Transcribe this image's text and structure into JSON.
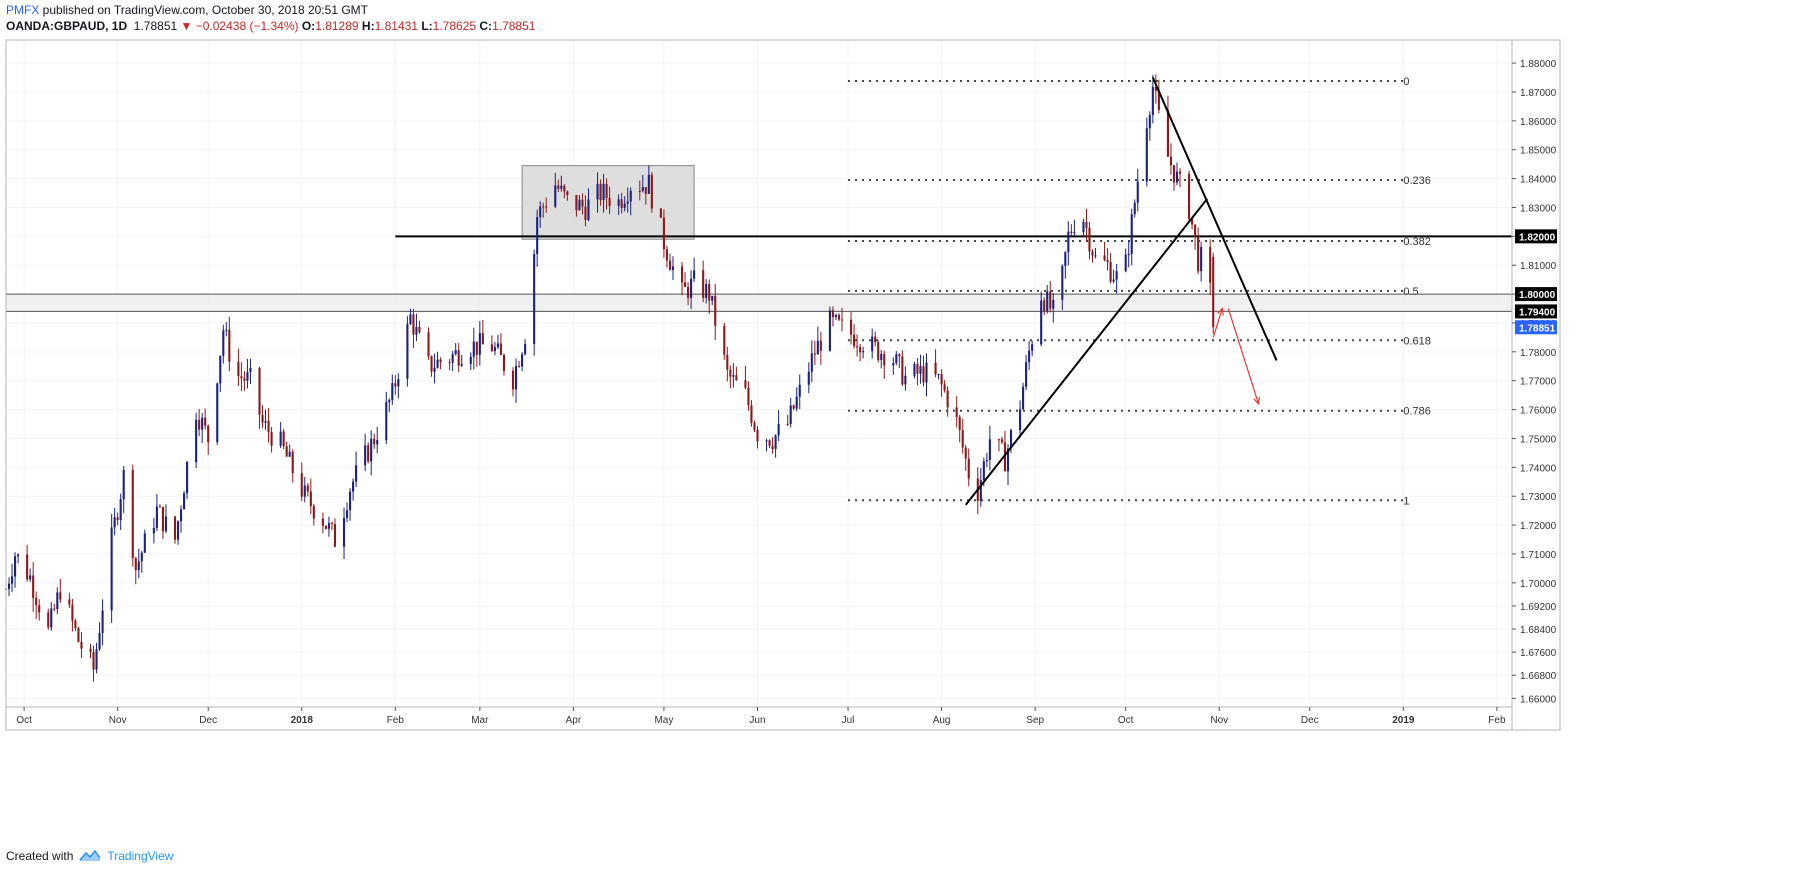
{
  "header": {
    "publisher": "PMFX",
    "published_text": " published on TradingView.com, October 30, 2018 20:51 GMT",
    "symbol": "OANDA:GBPAUD, 1D",
    "last": "1.78851",
    "change": "▼ −0.02438 (−1.34%)",
    "open_label": "O:",
    "open": "1.81289",
    "high_label": "H:",
    "high": "1.81431",
    "low_label": "L:",
    "low": "1.78625",
    "close_label": "C:",
    "close": "1.78851"
  },
  "footer": {
    "created_with": "Created with",
    "brand": "TradingView"
  },
  "colors": {
    "up": "#1a237e",
    "down": "#8b1a1a",
    "current_price_bg": "#2962ff",
    "arrow": "#e53935",
    "zone_fill": "#d8d8d8"
  },
  "chart_data": {
    "type": "candlestick",
    "symbol": "OANDA:GBPAUD",
    "timeframe": "1D",
    "ylim": [
      1.657,
      1.888
    ],
    "y_ticks": [
      1.66,
      1.668,
      1.676,
      1.684,
      1.692,
      1.7,
      1.71,
      1.72,
      1.73,
      1.74,
      1.75,
      1.76,
      1.77,
      1.78,
      1.79,
      1.8,
      1.81,
      1.82,
      1.83,
      1.84,
      1.85,
      1.86,
      1.87,
      1.88
    ],
    "y_tick_labels": [
      "1.66000",
      "1.66800",
      "1.67600",
      "1.68400",
      "1.69200",
      "1.70000",
      "1.71000",
      "1.72000",
      "1.73000",
      "1.74000",
      "1.75000",
      "1.76000",
      "1.77000",
      "1.78000",
      "1.79000",
      "1.80000",
      "1.81000",
      "1.82000",
      "1.83000",
      "1.84000",
      "1.85000",
      "1.86000",
      "1.87000",
      "1.88000"
    ],
    "x_range": [
      "2017-09-25",
      "2019-02-06"
    ],
    "x_ticks": [
      {
        "label": "Oct",
        "date": "2017-10-01",
        "bold": false
      },
      {
        "label": "Nov",
        "date": "2017-11-01",
        "bold": false
      },
      {
        "label": "Dec",
        "date": "2017-12-01",
        "bold": false
      },
      {
        "label": "2018",
        "date": "2018-01-01",
        "bold": true
      },
      {
        "label": "Feb",
        "date": "2018-02-01",
        "bold": false
      },
      {
        "label": "Mar",
        "date": "2018-03-01",
        "bold": false
      },
      {
        "label": "Apr",
        "date": "2018-04-01",
        "bold": false
      },
      {
        "label": "May",
        "date": "2018-05-01",
        "bold": false
      },
      {
        "label": "Jun",
        "date": "2018-06-01",
        "bold": false
      },
      {
        "label": "Jul",
        "date": "2018-07-01",
        "bold": false
      },
      {
        "label": "Aug",
        "date": "2018-08-01",
        "bold": false
      },
      {
        "label": "Sep",
        "date": "2018-09-01",
        "bold": false
      },
      {
        "label": "Oct",
        "date": "2018-10-01",
        "bold": false
      },
      {
        "label": "Nov",
        "date": "2018-11-01",
        "bold": false
      },
      {
        "label": "Dec",
        "date": "2018-12-01",
        "bold": false
      },
      {
        "label": "2019",
        "date": "2019-01-01",
        "bold": true
      },
      {
        "label": "Feb",
        "date": "2019-02-01",
        "bold": false
      }
    ],
    "close_path": [
      {
        "date": "2017-09-25",
        "close": 1.698
      },
      {
        "date": "2017-09-28",
        "close": 1.71
      },
      {
        "date": "2017-10-03",
        "close": 1.702
      },
      {
        "date": "2017-10-09",
        "close": 1.683
      },
      {
        "date": "2017-10-13",
        "close": 1.698
      },
      {
        "date": "2017-10-19",
        "close": 1.68
      },
      {
        "date": "2017-10-24",
        "close": 1.67
      },
      {
        "date": "2017-10-30",
        "close": 1.715
      },
      {
        "date": "2017-11-03",
        "close": 1.737
      },
      {
        "date": "2017-11-07",
        "close": 1.705
      },
      {
        "date": "2017-11-14",
        "close": 1.725
      },
      {
        "date": "2017-11-20",
        "close": 1.715
      },
      {
        "date": "2017-11-27",
        "close": 1.76
      },
      {
        "date": "2017-12-01",
        "close": 1.75
      },
      {
        "date": "2017-12-06",
        "close": 1.788
      },
      {
        "date": "2017-12-10",
        "close": 1.772
      },
      {
        "date": "2017-12-15",
        "close": 1.77
      },
      {
        "date": "2017-12-19",
        "close": 1.755
      },
      {
        "date": "2017-12-25",
        "close": 1.748
      },
      {
        "date": "2018-01-02",
        "close": 1.73
      },
      {
        "date": "2018-01-08",
        "close": 1.722
      },
      {
        "date": "2018-01-12",
        "close": 1.715
      },
      {
        "date": "2018-01-17",
        "close": 1.733
      },
      {
        "date": "2018-01-25",
        "close": 1.75
      },
      {
        "date": "2018-01-31",
        "close": 1.765
      },
      {
        "date": "2018-02-06",
        "close": 1.792
      },
      {
        "date": "2018-02-12",
        "close": 1.775
      },
      {
        "date": "2018-02-19",
        "close": 1.778
      },
      {
        "date": "2018-02-26",
        "close": 1.782
      },
      {
        "date": "2018-03-05",
        "close": 1.782
      },
      {
        "date": "2018-03-12",
        "close": 1.771
      },
      {
        "date": "2018-03-17",
        "close": 1.79
      },
      {
        "date": "2018-03-20",
        "close": 1.827
      },
      {
        "date": "2018-03-26",
        "close": 1.838
      },
      {
        "date": "2018-03-30",
        "close": 1.832
      },
      {
        "date": "2018-04-05",
        "close": 1.83
      },
      {
        "date": "2018-04-10",
        "close": 1.835
      },
      {
        "date": "2018-04-16",
        "close": 1.832
      },
      {
        "date": "2018-04-20",
        "close": 1.838
      },
      {
        "date": "2018-04-26",
        "close": 1.838
      },
      {
        "date": "2018-05-01",
        "close": 1.818
      },
      {
        "date": "2018-05-07",
        "close": 1.8
      },
      {
        "date": "2018-05-11",
        "close": 1.804
      },
      {
        "date": "2018-05-16",
        "close": 1.8
      },
      {
        "date": "2018-05-22",
        "close": 1.772
      },
      {
        "date": "2018-05-28",
        "close": 1.765
      },
      {
        "date": "2018-06-01",
        "close": 1.752
      },
      {
        "date": "2018-06-06",
        "close": 1.75
      },
      {
        "date": "2018-06-11",
        "close": 1.755
      },
      {
        "date": "2018-06-15",
        "close": 1.766
      },
      {
        "date": "2018-06-20",
        "close": 1.78
      },
      {
        "date": "2018-06-25",
        "close": 1.79
      },
      {
        "date": "2018-06-29",
        "close": 1.788
      },
      {
        "date": "2018-07-04",
        "close": 1.785
      },
      {
        "date": "2018-07-10",
        "close": 1.781
      },
      {
        "date": "2018-07-15",
        "close": 1.779
      },
      {
        "date": "2018-07-20",
        "close": 1.771
      },
      {
        "date": "2018-07-26",
        "close": 1.773
      },
      {
        "date": "2018-07-31",
        "close": 1.77
      },
      {
        "date": "2018-08-05",
        "close": 1.76
      },
      {
        "date": "2018-08-10",
        "close": 1.738
      },
      {
        "date": "2018-08-13",
        "close": 1.732
      },
      {
        "date": "2018-08-17",
        "close": 1.75
      },
      {
        "date": "2018-08-22",
        "close": 1.743
      },
      {
        "date": "2018-08-27",
        "close": 1.762
      },
      {
        "date": "2018-08-30",
        "close": 1.78
      },
      {
        "date": "2018-09-03",
        "close": 1.8
      },
      {
        "date": "2018-09-08",
        "close": 1.792
      },
      {
        "date": "2018-09-12",
        "close": 1.82
      },
      {
        "date": "2018-09-16",
        "close": 1.83
      },
      {
        "date": "2018-09-21",
        "close": 1.812
      },
      {
        "date": "2018-09-25",
        "close": 1.81
      },
      {
        "date": "2018-09-30",
        "close": 1.803
      },
      {
        "date": "2018-10-04",
        "close": 1.832
      },
      {
        "date": "2018-10-07",
        "close": 1.855
      },
      {
        "date": "2018-10-10",
        "close": 1.872
      },
      {
        "date": "2018-10-14",
        "close": 1.85
      },
      {
        "date": "2018-10-18",
        "close": 1.84
      },
      {
        "date": "2018-10-22",
        "close": 1.83
      },
      {
        "date": "2018-10-25",
        "close": 1.812
      },
      {
        "date": "2018-10-28",
        "close": 1.812
      },
      {
        "date": "2018-10-30",
        "close": 1.78851
      }
    ],
    "candle_width_days": 0.7,
    "last_price": 1.78851,
    "last_price_label": "1.78851",
    "horizontal_levels": [
      {
        "price": 1.82,
        "label": "1.82000",
        "from": "2018-02-01",
        "to": "end"
      },
      {
        "price": 1.8,
        "label": "1.80000",
        "from": "start",
        "to": "end"
      },
      {
        "price": 1.794,
        "label": "1.79400",
        "from": "start",
        "to": "end"
      }
    ],
    "support_zone": {
      "from_price": 1.794,
      "to_price": 1.8
    },
    "consolidation_box": {
      "x1": "2018-03-15",
      "x2": "2018-05-11",
      "y1": 1.819,
      "y2": 1.8445
    },
    "fibonacci": {
      "x1": "2018-07-01",
      "x2": "2019-01-01",
      "label_at": "2019-01-01",
      "levels": [
        {
          "ratio": "0",
          "price": 1.8738
        },
        {
          "ratio": "0.236",
          "price": 1.8395
        },
        {
          "ratio": "0.382",
          "price": 1.8184
        },
        {
          "ratio": "0.5",
          "price": 1.8011
        },
        {
          "ratio": "0.618",
          "price": 1.784
        },
        {
          "ratio": "0.786",
          "price": 1.7596
        },
        {
          "ratio": "1",
          "price": 1.7286
        }
      ]
    },
    "trendlines": [
      {
        "x1": "2018-08-09",
        "y1": 1.727,
        "x2": "2018-10-28",
        "y2": 1.833
      },
      {
        "x1": "2018-10-10",
        "y1": 1.875,
        "x2": "2018-11-20",
        "y2": 1.777
      }
    ],
    "projection_arrows": [
      {
        "x1": "2018-10-30",
        "y1": 1.785,
        "x2": "2018-11-02",
        "y2": 1.795
      },
      {
        "x1": "2018-11-04",
        "y1": 1.795,
        "x2": "2018-11-14",
        "y2": 1.762
      }
    ]
  }
}
